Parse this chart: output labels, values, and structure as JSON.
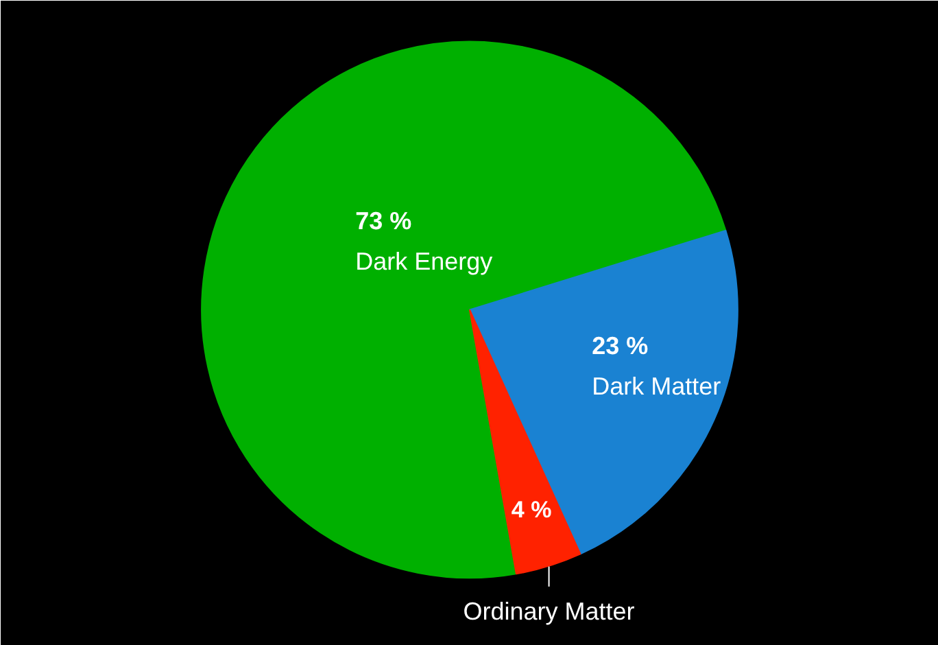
{
  "chart_data": {
    "type": "pie",
    "categories": [
      "Dark Energy",
      "Dark Matter",
      "Ordinary Matter"
    ],
    "values": [
      73,
      23,
      4
    ],
    "value_labels": [
      "73 %",
      "23 %",
      "4 %"
    ],
    "colors": [
      "#00b000",
      "#1a82d2",
      "#ff2200"
    ]
  }
}
